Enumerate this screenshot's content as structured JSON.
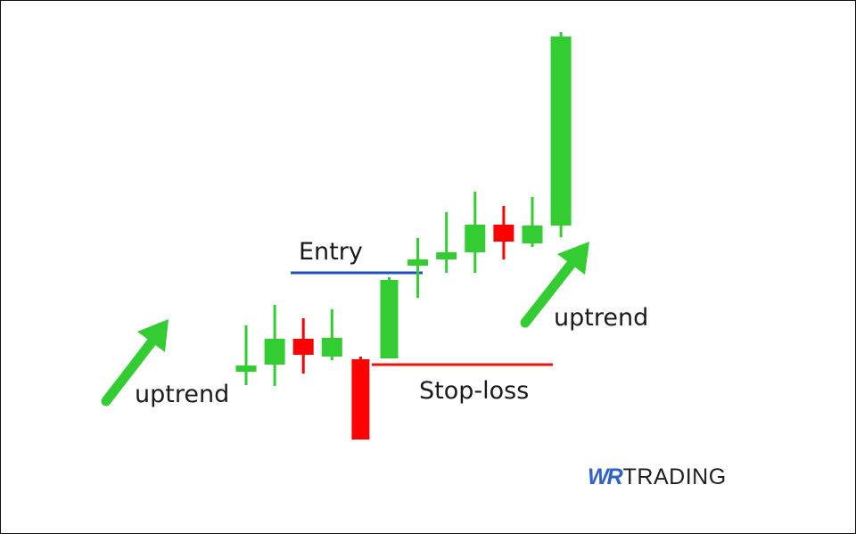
{
  "labels": {
    "entry": "Entry",
    "stop_loss": "Stop-loss",
    "uptrend_left": "uptrend",
    "uptrend_right": "uptrend"
  },
  "logo": {
    "prefix": "WR",
    "suffix": "TRADING",
    "prefix_color": "#2f63c9"
  },
  "colors": {
    "bull": "#33cc33",
    "bear": "#ff0000",
    "entry_line": "#1f4fbf",
    "stop_line": "#ee1111",
    "arrow": "#33cc33"
  },
  "chart_data": {
    "type": "candlestick",
    "candles": [
      {
        "open": 184,
        "high": 236,
        "low": 169,
        "close": 191
      },
      {
        "open": 192,
        "high": 259,
        "low": 168,
        "close": 221
      },
      {
        "open": 221,
        "high": 244,
        "low": 182,
        "close": 203
      },
      {
        "open": 201,
        "high": 254,
        "low": 197,
        "close": 222
      },
      {
        "open": 198,
        "high": 201,
        "low": 108,
        "close": 108
      },
      {
        "open": 199,
        "high": 290,
        "low": 199,
        "close": 287
      },
      {
        "open": 303,
        "high": 334,
        "low": 267,
        "close": 310
      },
      {
        "open": 310,
        "high": 363,
        "low": 295,
        "close": 318
      },
      {
        "open": 318,
        "high": 386,
        "low": 295,
        "close": 349
      },
      {
        "open": 349,
        "high": 370,
        "low": 310,
        "close": 330
      },
      {
        "open": 328,
        "high": 380,
        "low": 324,
        "close": 348
      },
      {
        "open": 348,
        "high": 565,
        "low": 335,
        "close": 560
      }
    ],
    "levels": {
      "entry": 295,
      "stop_loss": 192
    },
    "axes_visible": false,
    "grid": false
  }
}
